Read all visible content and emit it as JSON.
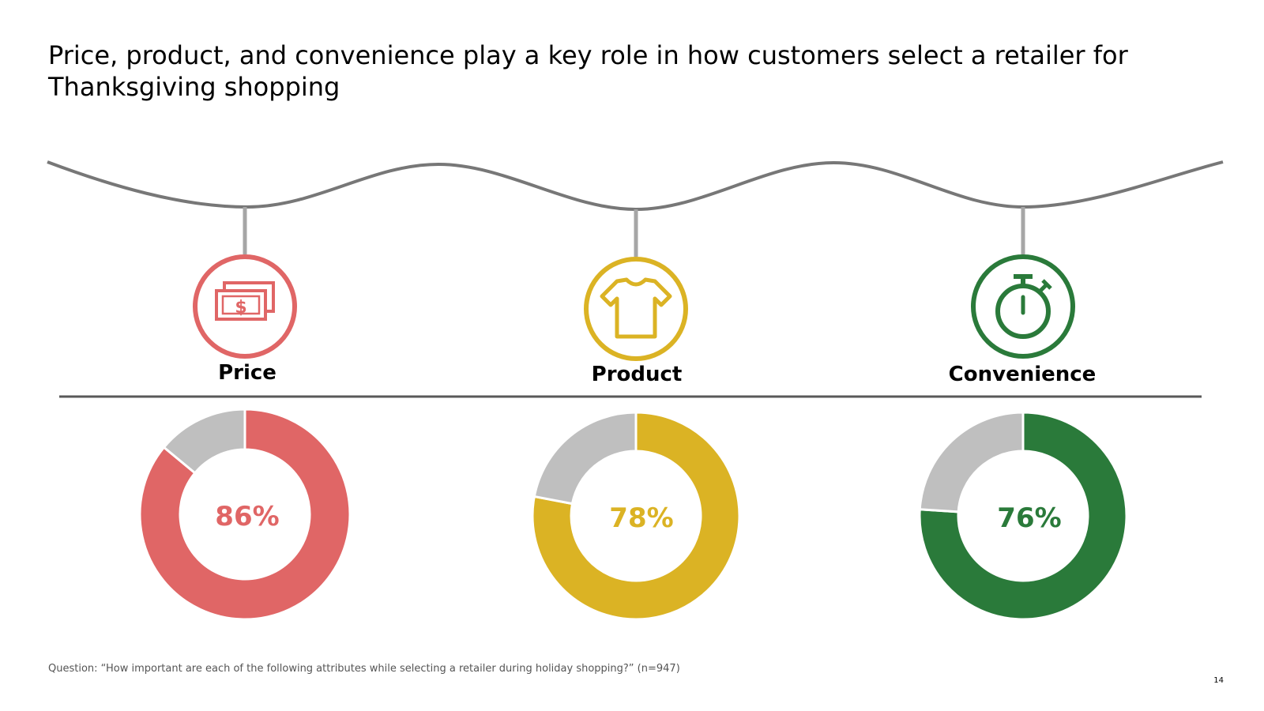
{
  "title": "Price, product, and convenience play a key role in how customers select a retailer for Thanksgiving shopping",
  "chart_data": {
    "type": "pie",
    "subtype": "donut",
    "unit": "%",
    "series": [
      {
        "name": "Price",
        "value": 86,
        "label": "86%",
        "color": "#E06666",
        "icon": "money-bills-icon"
      },
      {
        "name": "Product",
        "value": 78,
        "label": "78%",
        "color": "#DBB324",
        "icon": "t-shirt-icon"
      },
      {
        "name": "Convenience",
        "value": 76,
        "label": "76%",
        "color": "#2A7A3A",
        "icon": "stopwatch-icon"
      }
    ],
    "remainder_color": "#BFBFBF"
  },
  "footnote": "Question: “How important are each of the following attributes while selecting a retailer during holiday shopping?” (n=947)",
  "page_number": "14",
  "colors": {
    "line": "#777777",
    "connector": "#A6A6A6",
    "divider": "#595959"
  }
}
